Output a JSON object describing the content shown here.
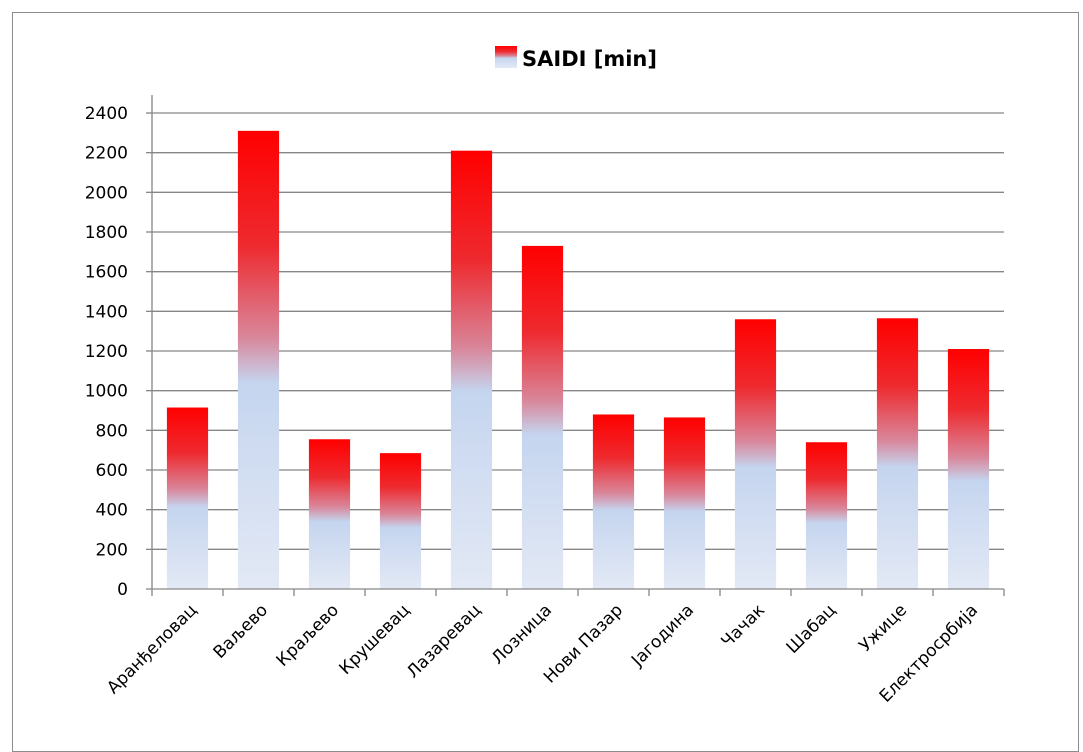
{
  "chart_data": {
    "type": "bar",
    "categories": [
      "Аранђеловац",
      "Ваљево",
      "Краљево",
      "Крушевац",
      "Лазаревац",
      "Лозница",
      "Нови Пазар",
      "Јагодина",
      "Чачак",
      "Шабац",
      "Ужице",
      "Електросрбија"
    ],
    "series": [
      {
        "name": "SAIDI [min]",
        "values": [
          915,
          2310,
          755,
          685,
          2210,
          1730,
          880,
          865,
          1360,
          740,
          1365,
          1210
        ]
      }
    ],
    "yticks": [
      "0",
      "200",
      "400",
      "600",
      "800",
      "1000",
      "1200",
      "1400",
      "1600",
      "1800",
      "2000",
      "2200",
      "2400"
    ],
    "ylim": [
      0,
      2400
    ],
    "grid": true,
    "legend_position": "top",
    "colors": {
      "bar_top": "#ff0000",
      "bar_mid": "#c5d5ef",
      "bar_bottom": "#e3e9f5",
      "grid": "#868686"
    }
  }
}
